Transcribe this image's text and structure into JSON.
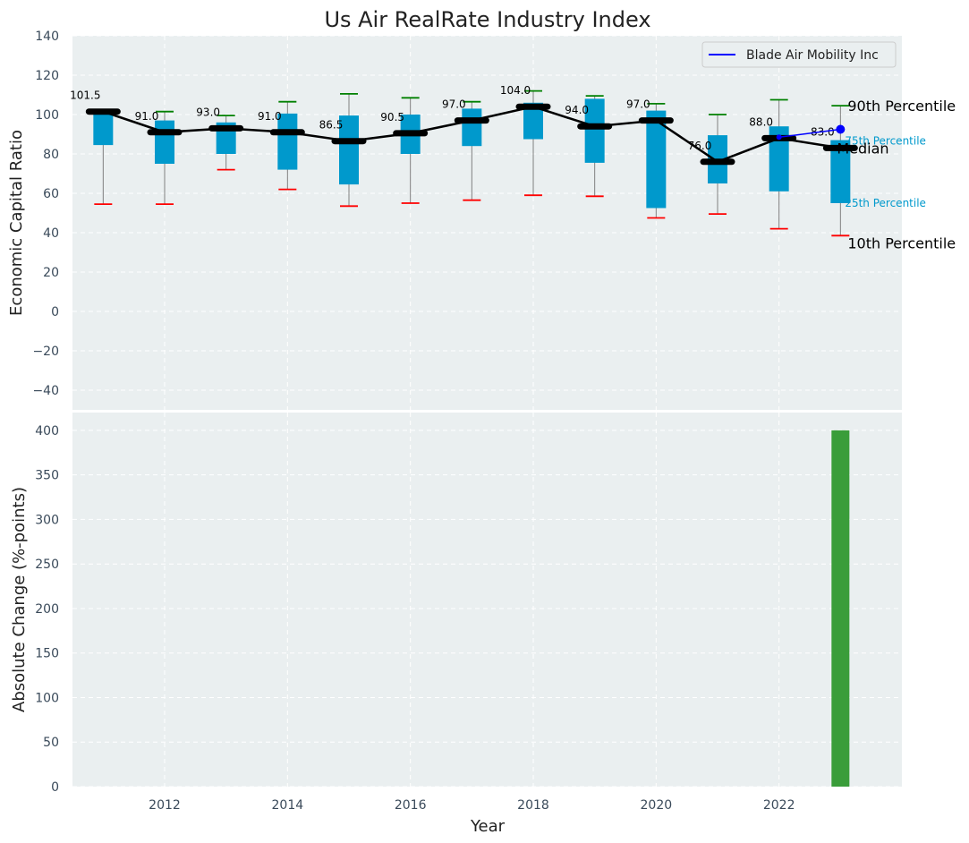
{
  "chart_data": [
    {
      "type": "box",
      "title": "Us Air RealRate Industry Index",
      "ylabel": "Economic Capital Ratio",
      "ylim": [
        -50,
        140
      ],
      "yticks": [
        -40,
        -20,
        0,
        20,
        40,
        60,
        80,
        100,
        120,
        140
      ],
      "ytick_labels": [
        "−40",
        "−20",
        "0",
        "20",
        "40",
        "60",
        "80",
        "100",
        "120",
        "140"
      ],
      "grid": true,
      "legend_position": "top-right",
      "legend": [
        "Blade Air Mobility Inc"
      ],
      "x": [
        2011,
        2012,
        2013,
        2014,
        2015,
        2016,
        2017,
        2018,
        2019,
        2020,
        2021,
        2022,
        2023
      ],
      "p10": [
        54.5,
        54.5,
        72,
        62,
        53.5,
        55,
        56.5,
        59,
        58.5,
        47.5,
        49.5,
        42,
        38.5
      ],
      "p25": [
        84.5,
        75,
        80,
        72,
        64.5,
        80,
        84,
        87.5,
        75.5,
        52.5,
        65,
        61,
        55
      ],
      "p75": [
        101.5,
        97,
        96,
        100.5,
        99.5,
        100,
        103,
        106,
        108,
        102,
        89.5,
        94,
        87
      ],
      "p90": [
        101.5,
        101.5,
        99.5,
        106.5,
        110.5,
        108.5,
        106.5,
        112,
        109.5,
        105.5,
        100,
        107.5,
        104.5
      ],
      "median": [
        101.5,
        91.0,
        93.0,
        91.0,
        86.5,
        90.5,
        97.0,
        104.0,
        94.0,
        97.0,
        76.0,
        88.0,
        83.0
      ],
      "median_labels": [
        "101.5",
        "91.0",
        "93.0",
        "91.0",
        "86.5",
        "90.5",
        "97.0",
        "104.0",
        "94.0",
        "97.0",
        "76.0",
        "88.0",
        "83.0"
      ],
      "series": [
        {
          "name": "Blade Air Mobility Inc",
          "x": [
            2022,
            2023
          ],
          "values": [
            88.5,
            92.5
          ],
          "color": "#0000ff"
        }
      ],
      "annotations": {
        "p90": "90th Percentile",
        "p75": "75th Percentile",
        "median": "Median",
        "p25": "25th Percentile",
        "p10": "10th Percentile"
      },
      "colors": {
        "box": "#0099cc",
        "median_line": "#000000",
        "p90_cap": "#008000",
        "p10_cap": "#ff0000",
        "whisker": "#808080",
        "plot_bg": "#eaeff0"
      }
    },
    {
      "type": "bar",
      "ylabel": "Absolute Change (%-points)",
      "xlabel": "Year",
      "ylim": [
        0,
        420
      ],
      "yticks": [
        0,
        50,
        100,
        150,
        200,
        250,
        300,
        350,
        400
      ],
      "xlim": [
        2010.5,
        2024
      ],
      "xticks": [
        2012,
        2014,
        2016,
        2018,
        2020,
        2022
      ],
      "grid": true,
      "x": [
        2023
      ],
      "values": [
        400
      ],
      "colors": {
        "bar": "#3a9d3a"
      }
    }
  ]
}
